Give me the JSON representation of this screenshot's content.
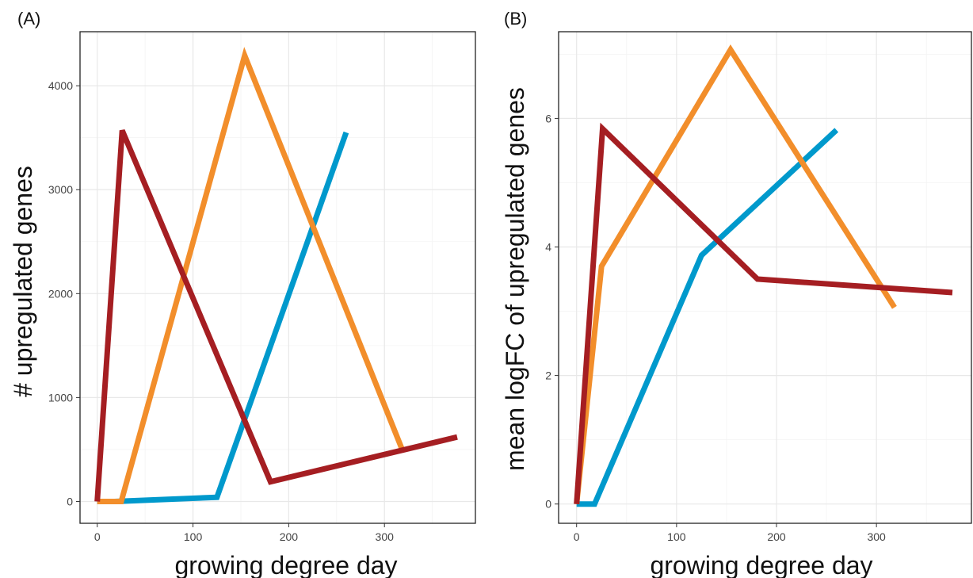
{
  "chart_data": [
    {
      "panel": "(A)",
      "type": "line",
      "title": "",
      "xlabel": "growing degree day",
      "ylabel": "# upregulated genes",
      "xlim": [
        -18,
        395
      ],
      "ylim": [
        -210,
        4520
      ],
      "xticks": [
        0,
        100,
        200,
        300
      ],
      "yticks": [
        0,
        1000,
        2000,
        3000,
        4000
      ],
      "grid": true,
      "series": [
        {
          "color": "#0099CC",
          "x": [
            0,
            18,
            125,
            260
          ],
          "y": [
            0,
            0,
            40,
            3550
          ]
        },
        {
          "color": "#F28E2B",
          "x": [
            0,
            25,
            154,
            318
          ],
          "y": [
            0,
            0,
            4290,
            510
          ]
        },
        {
          "color": "#A51E22",
          "x": [
            0,
            26,
            181,
            376
          ],
          "y": [
            0,
            3570,
            190,
            620
          ]
        }
      ]
    },
    {
      "panel": "(B)",
      "type": "line",
      "title": "",
      "xlabel": "growing degree day",
      "ylabel": "mean logFC of upregulated genes",
      "xlim": [
        -18,
        395
      ],
      "ylim": [
        -0.3,
        7.35
      ],
      "xticks": [
        0,
        100,
        200,
        300
      ],
      "yticks": [
        0,
        2,
        4,
        6
      ],
      "grid": true,
      "series": [
        {
          "color": "#0099CC",
          "x": [
            0,
            18,
            125,
            260
          ],
          "y": [
            0,
            0,
            3.87,
            5.82
          ]
        },
        {
          "color": "#F28E2B",
          "x": [
            0,
            25,
            154,
            318
          ],
          "y": [
            0,
            3.7,
            7.07,
            3.06
          ]
        },
        {
          "color": "#A51E22",
          "x": [
            0,
            26,
            181,
            376
          ],
          "y": [
            0,
            5.84,
            3.5,
            3.29
          ]
        }
      ]
    }
  ]
}
